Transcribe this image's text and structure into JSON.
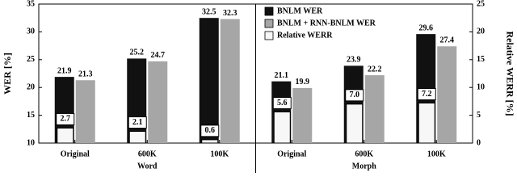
{
  "chart_data": {
    "type": "bar",
    "y_label": "WER [%]",
    "y2_label": "Relative WERR [%]",
    "categories": [
      "Original",
      "600K",
      "100K",
      "Original",
      "600K",
      "100K"
    ],
    "groups": [
      "Word",
      "Morph"
    ],
    "series": [
      {
        "name": "BNLM WER",
        "color": "#111111",
        "values": [
          21.9,
          25.2,
          32.5,
          21.1,
          23.9,
          29.6
        ]
      },
      {
        "name": "BNLM + RNN-BNLM WER",
        "color": "#a6a6a6",
        "values": [
          21.3,
          24.7,
          32.3,
          19.9,
          22.2,
          27.4
        ]
      },
      {
        "name": "Relative WERR",
        "color": "#f7f7f7",
        "axis": "y2",
        "values": [
          2.7,
          2.1,
          0.6,
          5.6,
          7,
          7.2
        ],
        "value_labels": [
          "2.7",
          "2.1",
          "0.6",
          "5.6",
          "7.0",
          "7.2"
        ]
      }
    ],
    "ylim": [
      10,
      35
    ],
    "yticks": [
      10,
      15,
      20,
      25,
      30,
      35
    ],
    "y2lim": [
      0,
      25
    ],
    "y2ticks": [
      0,
      5,
      10,
      15,
      20,
      25
    ],
    "legend": "upper right"
  }
}
